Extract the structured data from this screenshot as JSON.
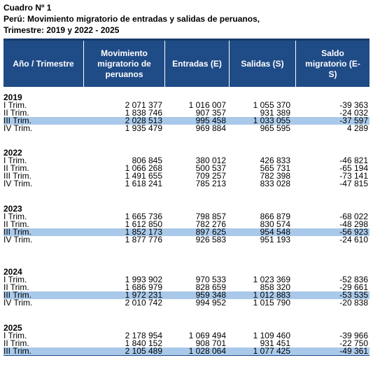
{
  "title": {
    "line1": "Cuadro Nº 1",
    "line2": "Perú: Movimiento migratorio de entradas y salidas de peruanos,",
    "line3": "Trimestre: 2019 y 2022 - 2025"
  },
  "table": {
    "headers": {
      "period": "Año / Trimestre",
      "movement": "Movimiento migratorio de peruanos",
      "entries": "Entradas (E)",
      "exits": "Salidas (S)",
      "balance": "Saldo migratorio (E-S)"
    },
    "highlight_color": "#a9c9ea",
    "header_color": "#1f4b86",
    "groups": [
      {
        "year": "2019",
        "rows": [
          {
            "q": "I Trim.",
            "mov": "2 071 377",
            "ent": "1 016 007",
            "sal": "1 055 370",
            "saldo": "-39 363",
            "hl": false
          },
          {
            "q": "II Trim.",
            "mov": "1 838 746",
            "ent": "907 357",
            "sal": "931 389",
            "saldo": "-24 032",
            "hl": false
          },
          {
            "q": "III Trim.",
            "mov": "2 028 513",
            "ent": "995 458",
            "sal": "1 033 055",
            "saldo": "-37 597",
            "hl": true
          },
          {
            "q": "IV Trim.",
            "mov": "1 935 479",
            "ent": "969 884",
            "sal": "965 595",
            "saldo": "4 289",
            "hl": false
          }
        ]
      },
      {
        "year": "2022",
        "rows": [
          {
            "q": "I Trim.",
            "mov": "806 845",
            "ent": "380 012",
            "sal": "426 833",
            "saldo": "-46 821",
            "hl": false
          },
          {
            "q": "II Trim.",
            "mov": "1 066 268",
            "ent": "500 537",
            "sal": "565 731",
            "saldo": "-65 194",
            "hl": false
          },
          {
            "q": "III Trim.",
            "mov": "1 491 655",
            "ent": "709 257",
            "sal": "782 398",
            "saldo": "-73 141",
            "hl": false
          },
          {
            "q": "IV Trim.",
            "mov": "1 618 241",
            "ent": "785 213",
            "sal": "833 028",
            "saldo": "-47 815",
            "hl": false
          }
        ]
      },
      {
        "year": "2023",
        "rows": [
          {
            "q": "I Trim.",
            "mov": "1 665 736",
            "ent": "798 857",
            "sal": "866 879",
            "saldo": "-68 022",
            "hl": false
          },
          {
            "q": "II Trim.",
            "mov": "1 612 850",
            "ent": "782 276",
            "sal": "830 574",
            "saldo": "-48 298",
            "hl": false
          },
          {
            "q": "III Trim.",
            "mov": "1 852 173",
            "ent": "897 625",
            "sal": "954 548",
            "saldo": "-56 923",
            "hl": true
          },
          {
            "q": "IV Trim.",
            "mov": "1 877 776",
            "ent": "926 583",
            "sal": "951 193",
            "saldo": "-24 610",
            "hl": false
          }
        ]
      },
      {
        "year": "2024",
        "rows": [
          {
            "q": "I Trim.",
            "mov": "1 993 902",
            "ent": "970 533",
            "sal": "1 023 369",
            "saldo": "-52 836",
            "hl": false
          },
          {
            "q": "II Trim.",
            "mov": "1 686 979",
            "ent": "828 659",
            "sal": "858 320",
            "saldo": "-29 661",
            "hl": false
          },
          {
            "q": "III Trim.",
            "mov": "1 972 231",
            "ent": "959 348",
            "sal": "1 012 883",
            "saldo": "-53 535",
            "hl": true
          },
          {
            "q": "IV Trim.",
            "mov": "2 010 742",
            "ent": "994 952",
            "sal": "1 015 790",
            "saldo": "-20 838",
            "hl": false
          }
        ]
      },
      {
        "year": "2025",
        "rows": [
          {
            "q": "I Trim.",
            "mov": "2 178 954",
            "ent": "1 069 494",
            "sal": "1 109 460",
            "saldo": "-39 966",
            "hl": false
          },
          {
            "q": "II Trim.",
            "mov": "1 840 152",
            "ent": "908 701",
            "sal": "931 451",
            "saldo": "-22 750",
            "hl": false
          },
          {
            "q": "III Trim.",
            "mov": "2 105 489",
            "ent": "1 028 064",
            "sal": "1 077 425",
            "saldo": "-49 361",
            "hl": true
          }
        ]
      }
    ]
  }
}
